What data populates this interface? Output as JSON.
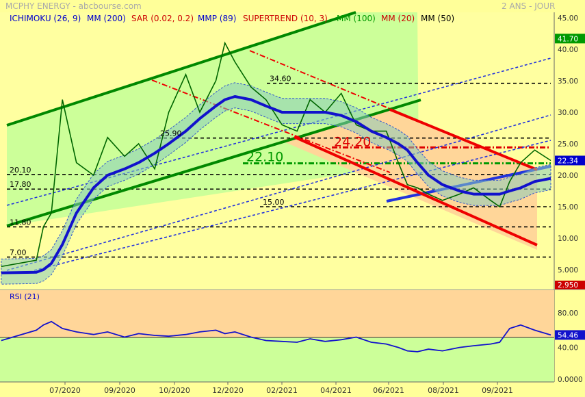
{
  "header": {
    "title": "MCPHY ENERGY - abcbourse.com",
    "period": "2 ANS - JOUR"
  },
  "legend": [
    {
      "label": "ICHIMOKU (26, 9)",
      "color": "#0000cc"
    },
    {
      "label": "MM (200)",
      "color": "#0000cc"
    },
    {
      "label": "SAR (0.02, 0.2)",
      "color": "#cc0000"
    },
    {
      "label": "MMP (89)",
      "color": "#0000cc"
    },
    {
      "label": "SUPERTREND (10, 3)",
      "color": "#cc0000"
    },
    {
      "label": "MM (100)",
      "color": "#009900"
    },
    {
      "label": "MM (20)",
      "color": "#cc0000"
    },
    {
      "label": "MM (50)",
      "color": "#000000"
    }
  ],
  "chart_data": [
    {
      "type": "line",
      "title": "MCPHY ENERGY",
      "x_tick_labels": [
        "07/2020",
        "09/2020",
        "10/2020",
        "12/2020",
        "02/2021",
        "04/2021",
        "06/2021",
        "08/2021",
        "09/2021"
      ],
      "y_ticks": [
        "45.00",
        "40.00",
        "35.00",
        "30.00",
        "25.00",
        "20.00",
        "15.00",
        "10.00",
        "5.000"
      ],
      "ylim": [
        2.95,
        45
      ],
      "y_axis_top_label": "2.950",
      "highlighted_values": [
        {
          "label": "41.70",
          "value": 41.7,
          "color": "#009900"
        },
        {
          "label": "22.34",
          "value": 22.34,
          "color": "#0000cc"
        }
      ],
      "horizontal_levels": [
        {
          "label": "34.60",
          "value": 34.6
        },
        {
          "label": "25.90",
          "value": 25.9
        },
        {
          "label": "20.10",
          "value": 20.1
        },
        {
          "label": "17.80",
          "value": 17.8
        },
        {
          "label": "15.00",
          "value": 15.0
        },
        {
          "label": "11.80",
          "value": 11.8
        },
        {
          "label": "7.00",
          "value": 7.0
        }
      ],
      "annotations": [
        {
          "label": "24.20",
          "value": 24.2,
          "color": "#dd0000"
        },
        {
          "label": "22.10",
          "value": 22.1,
          "color": "#009900"
        }
      ],
      "series": [
        {
          "name": "price",
          "dates": [
            "2020-05",
            "2020-06-05",
            "2020-06-12",
            "2020-06-20",
            "2020-07-01",
            "2020-07-15",
            "2020-08-01",
            "2020-08-15",
            "2020-09-01",
            "2020-09-15",
            "2020-10-01",
            "2020-10-15",
            "2020-11-01",
            "2020-11-15",
            "2020-12-01",
            "2020-12-10",
            "2020-12-20",
            "2021-01-05",
            "2021-01-20",
            "2021-02-05",
            "2021-02-20",
            "2021-03-05",
            "2021-03-20",
            "2021-04-05",
            "2021-04-20",
            "2021-05-05",
            "2021-05-20",
            "2021-06-01",
            "2021-06-10",
            "2021-06-20",
            "2021-07-01",
            "2021-07-15",
            "2021-08-01",
            "2021-08-15",
            "2021-09-01",
            "2021-09-10",
            "2021-09-20",
            "2021-10-01",
            "2021-10-15",
            "2021-10-31"
          ],
          "values": [
            5.5,
            6.5,
            11.8,
            14,
            32,
            22,
            20,
            26,
            23,
            25,
            21,
            30,
            36,
            30,
            35,
            41,
            38,
            34,
            32,
            28,
            27,
            32,
            30,
            33,
            28,
            27,
            27,
            22,
            18.5,
            18,
            17,
            16,
            17,
            18,
            16,
            15,
            19,
            22,
            24,
            22.34
          ]
        },
        {
          "name": "MM (200)",
          "values": [
            4.5,
            4.6,
            5,
            6,
            9,
            14,
            18,
            20,
            21,
            22,
            23.5,
            25,
            27,
            29,
            31,
            32,
            32.5,
            32,
            31,
            30,
            30,
            30,
            30,
            29.5,
            28.5,
            27,
            26,
            25,
            24,
            22,
            20,
            18.5,
            17.5,
            17,
            17,
            17,
            17.5,
            18,
            19,
            19.5
          ]
        }
      ]
    },
    {
      "type": "line",
      "title": "RSI (21)",
      "y_ticks": [
        "80.00",
        "40.00",
        "0.0000"
      ],
      "ylim": [
        0,
        100
      ],
      "current": {
        "label": "54.46",
        "value": 54.46
      },
      "series": [
        {
          "name": "RSI (21)",
          "values": [
            48,
            60,
            66,
            70,
            62,
            58,
            55,
            58,
            52,
            56,
            54,
            53,
            55,
            58,
            60,
            56,
            58,
            52,
            48,
            47,
            46,
            50,
            47,
            49,
            52,
            46,
            44,
            40,
            36,
            35,
            38,
            36,
            40,
            42,
            44,
            46,
            62,
            66,
            60,
            54.46
          ]
        }
      ]
    }
  ]
}
